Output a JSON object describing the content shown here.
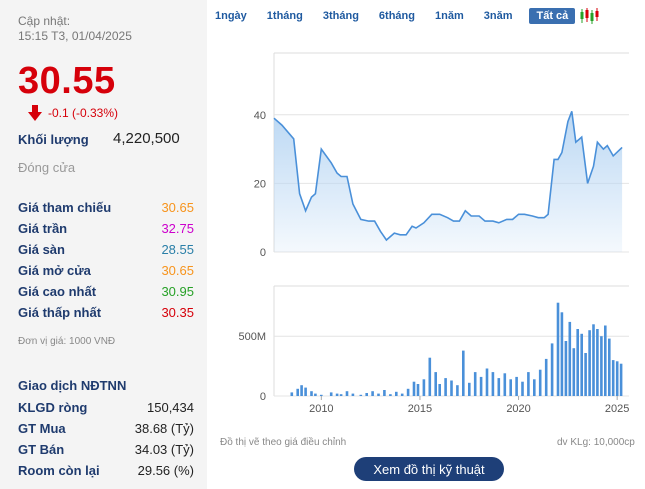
{
  "header": {
    "update_label": "Cập nhật:",
    "update_time": "15:15 T3, 01/04/2025"
  },
  "quote": {
    "price": "30.55",
    "change": "-0.1 (-0.33%)",
    "volume_label": "Khối lượng",
    "volume_value": "4,220,500",
    "close_label": "Đóng cửa"
  },
  "info": [
    {
      "label": "Giá tham chiếu",
      "value": "30.65",
      "color": "#f7941d"
    },
    {
      "label": "Giá trần",
      "value": "32.75",
      "color": "#cc00cc"
    },
    {
      "label": "Giá sàn",
      "value": "28.55",
      "color": "#2a7fa8"
    },
    {
      "label": "Giá mở cửa",
      "value": "30.65",
      "color": "#f7941d"
    },
    {
      "label": "Giá cao nhất",
      "value": "30.95",
      "color": "#27a127"
    },
    {
      "label": "Giá thấp nhất",
      "value": "30.35",
      "color": "#d6000a"
    }
  ],
  "unit_note": "Đơn vị giá: 1000 VNĐ",
  "foreign": {
    "title": "Giao dịch NĐTNN",
    "rows": [
      {
        "label": "KLGD ròng",
        "value": "150,434"
      },
      {
        "label": "GT Mua",
        "value": "38.68 (Tỷ)"
      },
      {
        "label": "GT Bán",
        "value": "34.03 (Tỷ)"
      },
      {
        "label": "Room còn lại",
        "value": "29.56 (%)"
      }
    ]
  },
  "ranges": [
    "1ngày",
    "1tháng",
    "3tháng",
    "6tháng",
    "1năm",
    "3năm",
    "Tất cả"
  ],
  "active_range": 6,
  "footer": {
    "note_left": "Đồ thị vẽ theo giá điều chỉnh",
    "note_right": "dv KLg: 10,000cp"
  },
  "tech_button": "Xem đồ thị kỹ thuật",
  "colors": {
    "price_red": "#d6000a",
    "label_navy": "#1f3b6e",
    "chart_line": "#4a90d9",
    "chart_fill": "#b8d6f3",
    "volume_bar": "#4a90d9",
    "button_bg": "#1e3f78"
  },
  "chart_data": {
    "type": "area",
    "price": {
      "x": [
        2007.6,
        2008.0,
        2008.6,
        2008.9,
        2009.2,
        2009.5,
        2009.7,
        2010.0,
        2010.5,
        2010.8,
        2011.0,
        2011.3,
        2011.6,
        2012.0,
        2012.4,
        2012.7,
        2013.0,
        2013.3,
        2013.7,
        2014.0,
        2014.3,
        2014.6,
        2014.8,
        2015.2,
        2015.6,
        2016.0,
        2016.4,
        2016.7,
        2017.0,
        2017.3,
        2017.6,
        2018.0,
        2018.3,
        2018.7,
        2019.0,
        2019.4,
        2019.7,
        2020.0,
        2020.3,
        2020.7,
        2021.0,
        2021.3,
        2021.5,
        2021.8,
        2022.0,
        2022.2,
        2022.5,
        2022.7,
        2022.9,
        2023.2,
        2023.5,
        2023.8,
        2024.0,
        2024.3,
        2024.5,
        2024.8,
        2025.25
      ],
      "y": [
        39,
        37,
        33,
        17,
        12,
        16,
        17,
        30,
        26,
        23,
        22,
        22,
        14,
        9.5,
        9,
        9,
        6,
        3.5,
        5.5,
        5,
        5,
        7.5,
        7,
        8.5,
        11,
        11,
        10,
        9,
        9,
        12,
        10.5,
        10.5,
        9,
        9,
        8.5,
        9.5,
        9.5,
        11,
        11,
        10.5,
        10,
        10,
        11,
        27,
        27,
        29,
        38,
        41,
        32,
        33.5,
        20,
        25,
        32,
        30,
        31,
        28,
        30.5
      ],
      "yticks": [
        0,
        20,
        40
      ]
    },
    "volume": {
      "x": [
        2008.5,
        2008.8,
        2009.0,
        2009.2,
        2009.5,
        2009.7,
        2010.0,
        2010.5,
        2010.8,
        2011.0,
        2011.3,
        2011.6,
        2012.0,
        2012.3,
        2012.6,
        2012.9,
        2013.2,
        2013.5,
        2013.8,
        2014.1,
        2014.4,
        2014.7,
        2014.9,
        2015.2,
        2015.5,
        2015.8,
        2016.0,
        2016.3,
        2016.6,
        2016.9,
        2017.2,
        2017.5,
        2017.8,
        2018.1,
        2018.4,
        2018.7,
        2019.0,
        2019.3,
        2019.6,
        2019.9,
        2020.2,
        2020.5,
        2020.8,
        2021.1,
        2021.4,
        2021.7,
        2022.0,
        2022.2,
        2022.4,
        2022.6,
        2022.8,
        2023.0,
        2023.2,
        2023.4,
        2023.6,
        2023.8,
        2024.0,
        2024.2,
        2024.4,
        2024.6,
        2024.8,
        2025.0,
        2025.2
      ],
      "y": [
        30,
        60,
        90,
        70,
        40,
        20,
        10,
        30,
        20,
        15,
        40,
        20,
        10,
        25,
        40,
        20,
        50,
        15,
        35,
        20,
        60,
        120,
        100,
        140,
        320,
        200,
        100,
        150,
        130,
        90,
        380,
        110,
        200,
        160,
        230,
        200,
        150,
        190,
        140,
        160,
        120,
        200,
        140,
        220,
        310,
        440,
        780,
        700,
        460,
        620,
        400,
        560,
        520,
        360,
        550,
        600,
        560,
        500,
        590,
        480,
        300,
        290,
        270
      ],
      "yticks_labels": [
        "0",
        "500M"
      ],
      "yticks_values": [
        0,
        500
      ]
    },
    "x_ticks": [
      2010,
      2015,
      2020,
      2025
    ],
    "xlim": [
      2007.6,
      2025.6
    ],
    "ylim_price": [
      0,
      58
    ],
    "ylim_volume": [
      0,
      920
    ],
    "grid": true
  }
}
